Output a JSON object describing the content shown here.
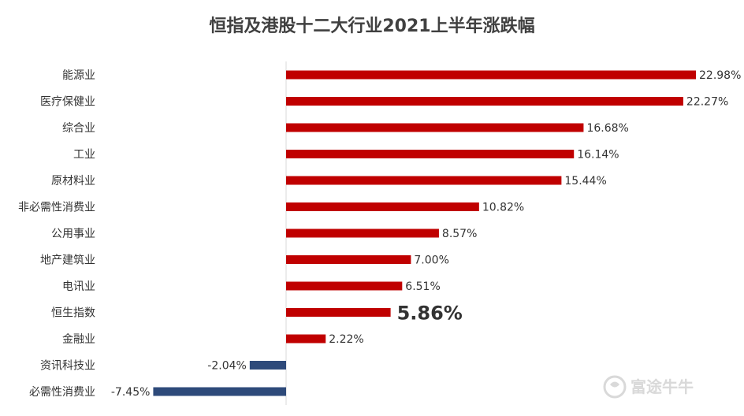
{
  "chart_data": {
    "type": "bar",
    "orientation": "horizontal",
    "title": "恒指及港股十二大行业2021上半年涨跌幅",
    "categories": [
      "能源业",
      "医疗保健业",
      "综合业",
      "工业",
      "原材料业",
      "非必需性消费业",
      "公用事业",
      "地产建筑业",
      "电讯业",
      "恒生指数",
      "金融业",
      "资讯科技业",
      "必需性消费业"
    ],
    "values": [
      22.98,
      22.27,
      16.68,
      16.14,
      15.44,
      10.82,
      8.57,
      7.0,
      6.51,
      5.86,
      2.22,
      -2.04,
      -7.45
    ],
    "labels": [
      "22.98%",
      "22.27%",
      "16.68%",
      "16.14%",
      "15.44%",
      "10.82%",
      "8.57%",
      "7.00%",
      "6.51%",
      "5.86%",
      "2.22%",
      "-2.04%",
      "-7.45%"
    ],
    "highlight": "恒生指数",
    "colors": {
      "positive": "#c00000",
      "negative": "#2e4a7a"
    },
    "xlim": [
      -10,
      30
    ],
    "grid": false,
    "legend": "none"
  },
  "watermark": {
    "text": "富途牛牛",
    "icon": "futu-logo-icon"
  }
}
